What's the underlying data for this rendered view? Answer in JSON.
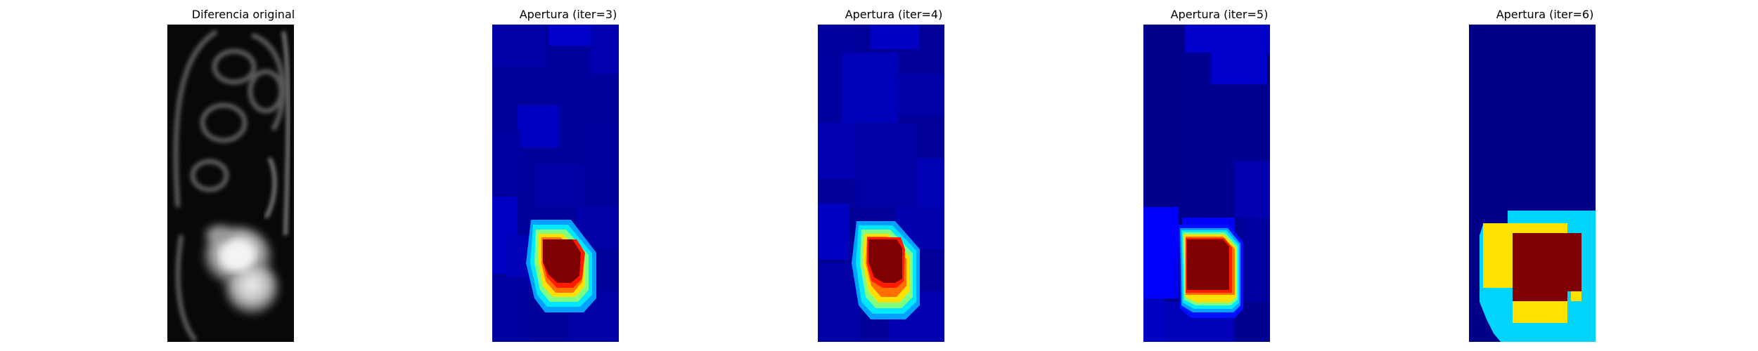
{
  "figure": {
    "panels": [
      {
        "title": "Diferencia original",
        "image": "grayscale MRI difference crop"
      },
      {
        "title": "Apertura (iter=3)",
        "image": "jet colormap morphological opening result"
      },
      {
        "title": "Apertura (iter=4)",
        "image": "jet colormap morphological opening result"
      },
      {
        "title": "Apertura (iter=5)",
        "image": "jet colormap morphological opening result"
      },
      {
        "title": "Apertura (iter=6)",
        "image": "jet colormap morphological opening result"
      }
    ],
    "colors": {
      "background": "#ffffff",
      "jet_navy": "#00008b",
      "jet_blue": "#0000ff",
      "jet_cyan": "#00d4ff",
      "jet_yellow": "#ffe000",
      "jet_red": "#ff1a00",
      "jet_darkred": "#7f0000"
    }
  }
}
